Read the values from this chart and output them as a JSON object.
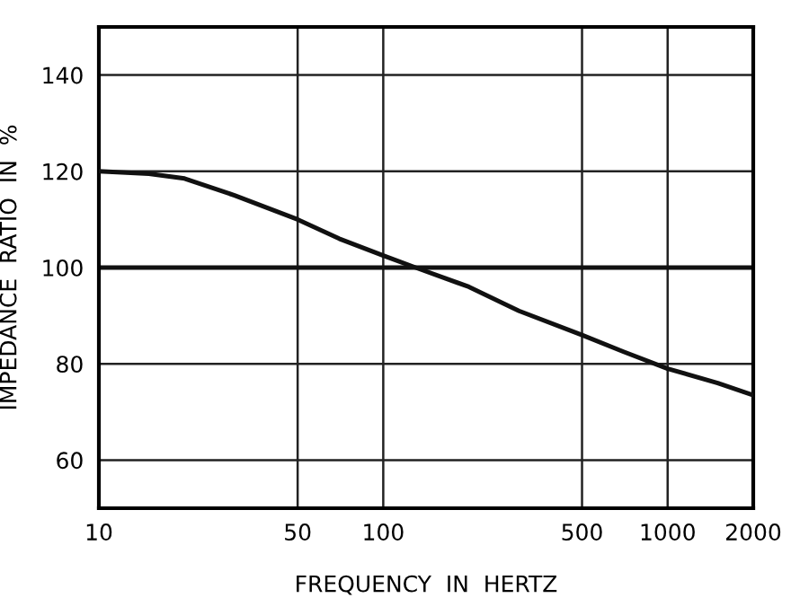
{
  "chart_data": {
    "type": "line",
    "xlabel": "FREQUENCY  IN  HERTZ",
    "ylabel": "IMPEDANCE  RATIO  IN  %",
    "log": "x",
    "series": [
      {
        "color": "#111111",
        "x": [
          10,
          15,
          20,
          30,
          50,
          70,
          100,
          130,
          200,
          300,
          500,
          700,
          1000,
          1500,
          2000
        ],
        "values": [
          120,
          119.5,
          118.5,
          115,
          110,
          106,
          102.5,
          100,
          96,
          91,
          86,
          82.5,
          79,
          76,
          73.5
        ]
      }
    ],
    "xlim": [
      10,
      2000
    ],
    "xticks": [
      10,
      50,
      100,
      500,
      1000,
      2000
    ],
    "ylim": [
      50,
      150
    ],
    "yticks": [
      60,
      80,
      100,
      120,
      140
    ],
    "ref_lines": [
      {
        "axis": "y",
        "value": 100,
        "color": "#111111"
      }
    ],
    "grid": true,
    "marker": "none",
    "line_style": "solid"
  }
}
